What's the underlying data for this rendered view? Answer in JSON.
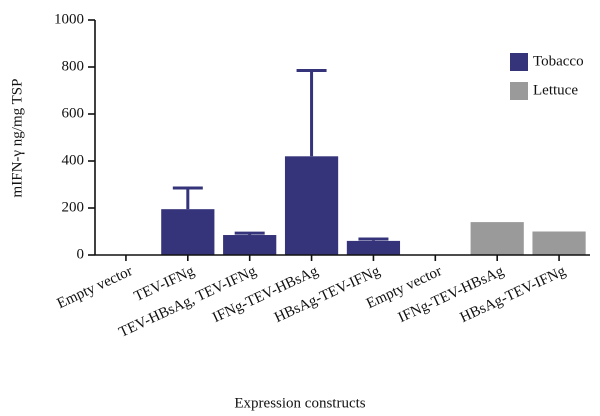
{
  "chart_data": {
    "type": "bar",
    "y_label": "mIFN-γ ng/mg TSP",
    "x_label": "Expression constructs",
    "categories": [
      "Empty vector",
      "TEV-IFNg",
      "TEV-HBsAg, TEV-IFNg",
      "IFNg-TEV-HBsAg",
      "HBsAg-TEV-IFNg",
      "Empty vector",
      "IFNg-TEV-HBsAg",
      "HBsAg-TEV-IFNg"
    ],
    "series": [
      {
        "name": "Tobacco",
        "color": "#35347a",
        "values": [
          0,
          195,
          85,
          420,
          60,
          null,
          null,
          null
        ],
        "errors": [
          null,
          90,
          8,
          365,
          8,
          null,
          null,
          null
        ]
      },
      {
        "name": "Lettuce",
        "color": "#9a9a9a",
        "values": [
          null,
          null,
          null,
          null,
          null,
          0,
          140,
          100
        ]
      }
    ],
    "ylim": [
      0,
      1000
    ],
    "yticks": [
      0,
      200,
      400,
      600,
      800,
      1000
    ],
    "legend": "upper right"
  }
}
